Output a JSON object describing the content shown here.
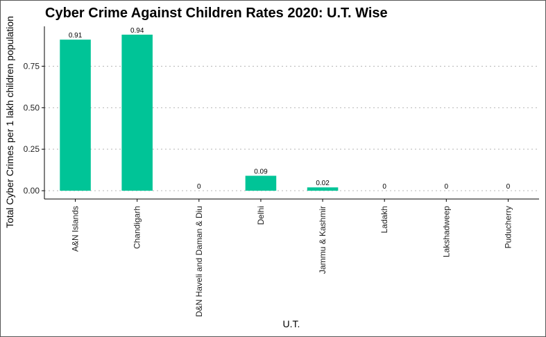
{
  "chart_data": {
    "type": "bar",
    "title": "Cyber Crime Against Children Rates 2020: U.T. Wise",
    "xlabel": "U.T.",
    "ylabel": "Total Cyber Crimes per 1 lakh children population",
    "categories": [
      "A&N Islands",
      "Chandigarh",
      "D&N Haveli and Daman & Diu",
      "Delhi",
      "Jammu & Kashmir",
      "Ladakh",
      "Lakshadweep",
      "Puducherry"
    ],
    "values": [
      0.91,
      0.94,
      0,
      0.09,
      0.02,
      0,
      0,
      0
    ],
    "data_labels": [
      "0.91",
      "0.94",
      "0",
      "0.09",
      "0.02",
      "0",
      "0",
      "0"
    ],
    "yticks": [
      0.0,
      0.25,
      0.5,
      0.75
    ],
    "ytick_labels": [
      "0.00",
      "0.25",
      "0.50",
      "0.75"
    ],
    "ylim": [
      -0.05,
      0.99
    ],
    "bar_color": "#00C497",
    "grid": "horizontal dotted",
    "legend": "none"
  }
}
